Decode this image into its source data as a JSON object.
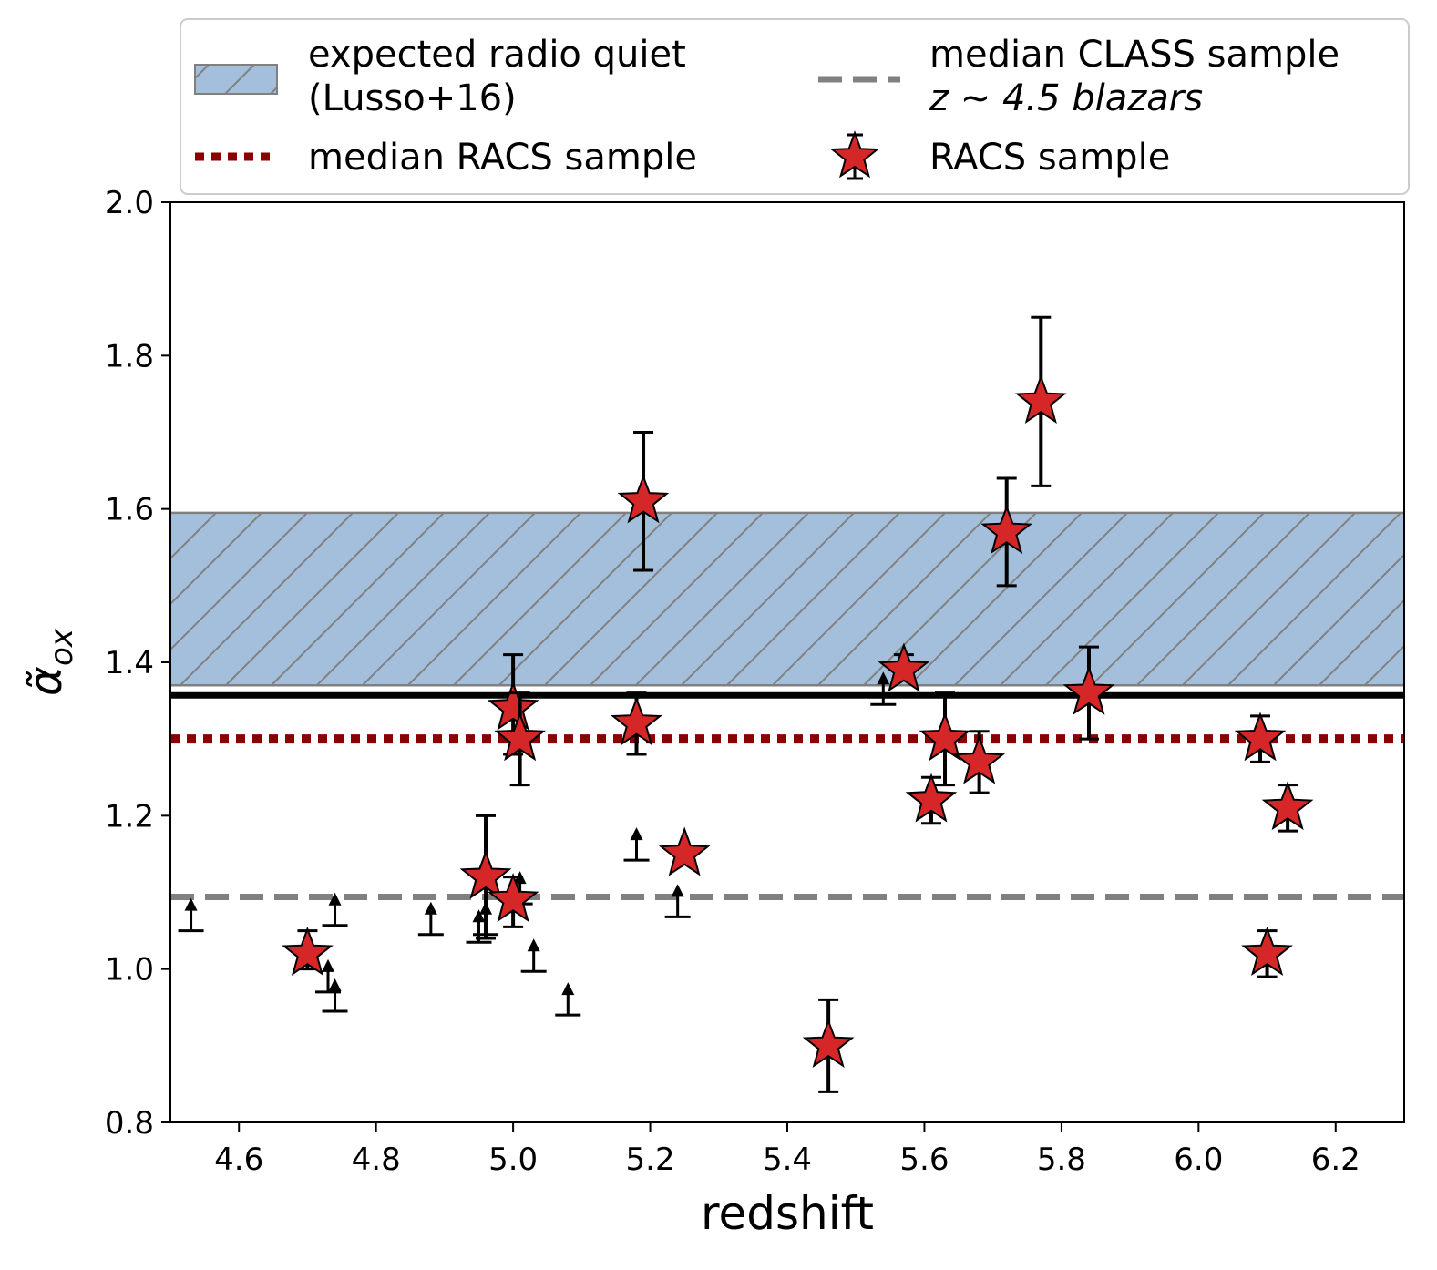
{
  "chart_data": {
    "type": "scatter",
    "title": "",
    "xlabel": "redshift",
    "ylabel": "α̃",
    "ylabel_subscript": "ox",
    "xlim": [
      4.5,
      6.3
    ],
    "ylim": [
      0.8,
      2.0
    ],
    "x_ticks": [
      4.6,
      4.8,
      5.0,
      5.2,
      5.4,
      5.6,
      5.8,
      6.0,
      6.2
    ],
    "x_tick_labels": [
      "4.6",
      "4.8",
      "5.0",
      "5.2",
      "5.4",
      "5.6",
      "5.8",
      "6.0",
      "6.2"
    ],
    "y_ticks": [
      0.8,
      1.0,
      1.2,
      1.4,
      1.6,
      1.8,
      2.0
    ],
    "y_tick_labels": [
      "0.8",
      "1.0",
      "1.2",
      "1.4",
      "1.6",
      "1.8",
      "2.0"
    ],
    "band": {
      "name": "expected radio quiet (Lusso+16)",
      "y_low": 1.37,
      "y_high": 1.595,
      "color": "#a3bfdb",
      "edge_color": "#808080"
    },
    "lines": [
      {
        "name": "black line",
        "y": 1.357,
        "color": "#000000",
        "style": "solid"
      },
      {
        "name": "median RACS sample",
        "y": 1.3,
        "color": "#8b0000",
        "style": "dotted"
      },
      {
        "name": "median CLASS sample z~4.5 blazars",
        "y": 1.094,
        "color": "#808080",
        "style": "dashed"
      }
    ],
    "series": [
      {
        "name": "RACS sample",
        "marker": "star",
        "color": "#d62728",
        "points": [
          {
            "x": 4.7,
            "y": 1.02,
            "err_low": 0.02,
            "err_high": 0.03
          },
          {
            "x": 4.96,
            "y": 1.12,
            "err_low": 0.08,
            "err_high": 0.08
          },
          {
            "x": 5.0,
            "y": 1.09,
            "err_low": 0.035,
            "err_high": 0.03
          },
          {
            "x": 5.0,
            "y": 1.34,
            "err_low": 0.06,
            "err_high": 0.07
          },
          {
            "x": 5.01,
            "y": 1.3,
            "err_low": 0.06,
            "err_high": 0.06
          },
          {
            "x": 5.18,
            "y": 1.32,
            "err_low": 0.04,
            "err_high": 0.04
          },
          {
            "x": 5.19,
            "y": 1.61,
            "err_low": 0.09,
            "err_high": 0.09
          },
          {
            "x": 5.25,
            "y": 1.15,
            "err_low": 0.0,
            "err_high": 0.0
          },
          {
            "x": 5.46,
            "y": 0.9,
            "err_low": 0.06,
            "err_high": 0.06
          },
          {
            "x": 5.57,
            "y": 1.39,
            "err_low": 0.0,
            "err_high": 0.02
          },
          {
            "x": 5.61,
            "y": 1.22,
            "err_low": 0.03,
            "err_high": 0.03
          },
          {
            "x": 5.63,
            "y": 1.3,
            "err_low": 0.06,
            "err_high": 0.06
          },
          {
            "x": 5.68,
            "y": 1.27,
            "err_low": 0.04,
            "err_high": 0.04
          },
          {
            "x": 5.72,
            "y": 1.57,
            "err_low": 0.07,
            "err_high": 0.07
          },
          {
            "x": 5.77,
            "y": 1.74,
            "err_low": 0.11,
            "err_high": 0.11
          },
          {
            "x": 5.84,
            "y": 1.36,
            "err_low": 0.06,
            "err_high": 0.06
          },
          {
            "x": 6.09,
            "y": 1.3,
            "err_low": 0.03,
            "err_high": 0.03
          },
          {
            "x": 6.1,
            "y": 1.02,
            "err_low": 0.03,
            "err_high": 0.03
          },
          {
            "x": 6.13,
            "y": 1.21,
            "err_low": 0.03,
            "err_high": 0.03
          }
        ]
      },
      {
        "name": "lower limits",
        "marker": "up-arrow",
        "color": "#000000",
        "points": [
          {
            "x": 4.53,
            "y": 1.05
          },
          {
            "x": 4.73,
            "y": 0.97
          },
          {
            "x": 4.74,
            "y": 0.945
          },
          {
            "x": 4.74,
            "y": 1.057
          },
          {
            "x": 4.88,
            "y": 1.045
          },
          {
            "x": 4.95,
            "y": 1.035
          },
          {
            "x": 4.96,
            "y": 1.045
          },
          {
            "x": 5.01,
            "y": 1.085
          },
          {
            "x": 5.03,
            "y": 0.997
          },
          {
            "x": 5.08,
            "y": 0.94
          },
          {
            "x": 5.18,
            "y": 1.142
          },
          {
            "x": 5.24,
            "y": 1.068
          },
          {
            "x": 5.54,
            "y": 1.345
          }
        ]
      }
    ],
    "legend": {
      "position": "above",
      "entries": [
        {
          "key": "band",
          "line1": "expected radio quiet",
          "line2": "(Lusso+16)"
        },
        {
          "key": "class",
          "line1": "median CLASS sample",
          "line2": "z ~ 4.5 blazars"
        },
        {
          "key": "racs-median",
          "line1": "median RACS sample"
        },
        {
          "key": "racs",
          "line1": "RACS sample"
        }
      ]
    }
  }
}
